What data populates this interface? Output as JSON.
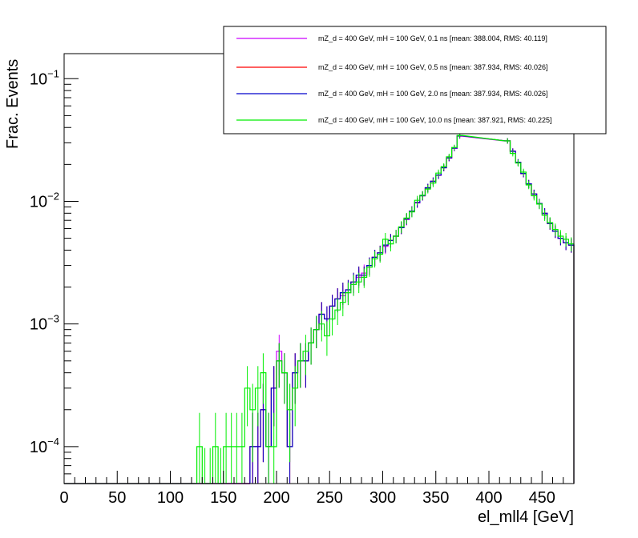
{
  "chart_data": {
    "type": "line",
    "xlabel": "el_mll4 [GeV]",
    "ylabel": "Frac. Events",
    "xlim": [
      0,
      480
    ],
    "ylim": [
      5e-05,
      0.16
    ],
    "yscale": "log",
    "x_ticks": [
      0,
      50,
      100,
      150,
      200,
      250,
      300,
      350,
      400,
      450
    ],
    "x_tick_labels": [
      "0",
      "50",
      "100",
      "150",
      "200",
      "250",
      "300",
      "350",
      "400",
      "450"
    ],
    "y_ticks": [
      0.0001,
      0.001,
      0.01,
      0.1
    ],
    "y_tick_labels": [
      {
        "base": "10",
        "exp": "−4"
      },
      {
        "base": "10",
        "exp": "−3"
      },
      {
        "base": "10",
        "exp": "−2"
      },
      {
        "base": "10",
        "exp": "−1"
      }
    ],
    "grid": false,
    "legend_position": "top-right",
    "bin_width": 5,
    "series": [
      {
        "name": "mZ_d = 400 GeV, mH = 100 GeV, 0.1 ns [mean: 388.004, RMS: 40.119]",
        "color": "#cc00ff",
        "x": [
          175,
          180,
          185,
          190,
          195,
          200,
          205,
          210,
          215,
          220,
          225,
          230,
          235,
          240,
          245,
          250,
          255,
          260,
          265,
          270,
          275,
          280,
          285,
          290,
          295,
          300,
          305,
          310,
          315,
          320,
          325,
          330,
          335,
          340,
          345,
          350,
          355,
          360,
          365,
          370,
          415,
          420,
          425,
          430,
          435,
          440,
          445,
          450,
          455,
          460,
          465,
          470,
          475
        ],
        "values": [
          0.0001,
          0.0001,
          0.0002,
          0.0001,
          0.0003,
          0.0006,
          0.0004,
          0.0002,
          0.0004,
          0.0005,
          0.0005,
          0.0007,
          0.0009,
          0.0012,
          0.0011,
          0.0014,
          0.0016,
          0.0017,
          0.0018,
          0.0021,
          0.0024,
          0.0026,
          0.003,
          0.0035,
          0.0038,
          0.0043,
          0.0048,
          0.0052,
          0.0061,
          0.0071,
          0.0083,
          0.0097,
          0.0111,
          0.0128,
          0.0145,
          0.0163,
          0.0188,
          0.0225,
          0.027,
          0.034,
          0.031,
          0.0255,
          0.0207,
          0.0168,
          0.0138,
          0.0114,
          0.0095,
          0.0079,
          0.0066,
          0.0057,
          0.005,
          0.0046,
          0.0044
        ]
      },
      {
        "name": "mZ_d = 400 GeV, mH = 100 GeV, 0.5 ns [mean: 387.934, RMS: 40.026]",
        "color": "#ff0000",
        "x": [
          175,
          180,
          185,
          190,
          195,
          200,
          205,
          210,
          215,
          220,
          225,
          230,
          235,
          240,
          245,
          250,
          255,
          260,
          265,
          270,
          275,
          280,
          285,
          290,
          295,
          300,
          305,
          310,
          315,
          320,
          325,
          330,
          335,
          340,
          345,
          350,
          355,
          360,
          365,
          370,
          415,
          420,
          425,
          430,
          435,
          440,
          445,
          450,
          455,
          460,
          465,
          470,
          475
        ],
        "values": [
          0.0001,
          0.0001,
          0.0002,
          0.0001,
          0.0003,
          0.0005,
          0.0004,
          0.0001,
          0.0004,
          0.0005,
          0.0005,
          0.0007,
          0.0009,
          0.0012,
          0.0011,
          0.0014,
          0.0016,
          0.0018,
          0.0019,
          0.0022,
          0.0025,
          0.0025,
          0.003,
          0.0035,
          0.0038,
          0.0044,
          0.0048,
          0.0052,
          0.0061,
          0.0072,
          0.0083,
          0.0098,
          0.0111,
          0.0129,
          0.0146,
          0.0164,
          0.0188,
          0.0226,
          0.0272,
          0.0342,
          0.0312,
          0.0256,
          0.0208,
          0.0169,
          0.0139,
          0.0115,
          0.0096,
          0.008,
          0.0066,
          0.0057,
          0.005,
          0.0046,
          0.0044
        ]
      },
      {
        "name": "mZ_d = 400 GeV, mH = 100 GeV, 2.0 ns [mean: 387.934, RMS: 40.026]",
        "color": "#0000cc",
        "x": [
          175,
          180,
          185,
          190,
          195,
          200,
          205,
          210,
          215,
          220,
          225,
          230,
          235,
          240,
          245,
          250,
          255,
          260,
          265,
          270,
          275,
          280,
          285,
          290,
          295,
          300,
          305,
          310,
          315,
          320,
          325,
          330,
          335,
          340,
          345,
          350,
          355,
          360,
          365,
          370,
          415,
          420,
          425,
          430,
          435,
          440,
          445,
          450,
          455,
          460,
          465,
          470,
          475
        ],
        "values": [
          0.0001,
          0.0001,
          0.0002,
          0.0001,
          0.0003,
          0.0005,
          0.0004,
          0.0001,
          0.0004,
          0.0005,
          0.0005,
          0.0007,
          0.0009,
          0.0012,
          0.0011,
          0.0014,
          0.0016,
          0.0018,
          0.0019,
          0.0022,
          0.0025,
          0.0025,
          0.003,
          0.0035,
          0.0038,
          0.0044,
          0.0048,
          0.0052,
          0.0061,
          0.0072,
          0.0083,
          0.0098,
          0.0111,
          0.0129,
          0.0146,
          0.0164,
          0.0188,
          0.0226,
          0.0272,
          0.0342,
          0.0312,
          0.0256,
          0.0208,
          0.0169,
          0.0139,
          0.0115,
          0.0096,
          0.008,
          0.0066,
          0.0057,
          0.005,
          0.0046,
          0.0044
        ]
      },
      {
        "name": "mZ_d = 400 GeV, mH = 100 GeV, 10.0 ns [mean: 387.921, RMS: 40.225]",
        "color": "#00ee00",
        "x": [
          125,
          130,
          135,
          140,
          145,
          150,
          155,
          160,
          165,
          170,
          175,
          180,
          185,
          190,
          195,
          200,
          205,
          210,
          215,
          220,
          225,
          230,
          235,
          240,
          245,
          250,
          255,
          260,
          265,
          270,
          275,
          280,
          285,
          290,
          295,
          300,
          305,
          310,
          315,
          320,
          325,
          330,
          335,
          340,
          345,
          350,
          355,
          360,
          365,
          370,
          415,
          420,
          425,
          430,
          435,
          440,
          445,
          450,
          455,
          460,
          465,
          470,
          475
        ],
        "values": [
          0.0001,
          5e-05,
          5e-05,
          0.0001,
          5e-05,
          0.0001,
          0.0001,
          0.0001,
          0.0001,
          0.0003,
          0.0002,
          0.0003,
          0.0004,
          0.0001,
          0.0001,
          0.0005,
          0.0004,
          0.0002,
          0.0003,
          0.0005,
          0.0006,
          0.0007,
          0.0009,
          0.001,
          0.0008,
          0.0011,
          0.0013,
          0.0015,
          0.0018,
          0.0021,
          0.0022,
          0.0024,
          0.0029,
          0.0034,
          0.0037,
          0.0049,
          0.0045,
          0.0052,
          0.0062,
          0.0073,
          0.0082,
          0.0102,
          0.0112,
          0.0126,
          0.0141,
          0.017,
          0.0192,
          0.0231,
          0.0275,
          0.0345,
          0.0311,
          0.0246,
          0.0205,
          0.0173,
          0.0136,
          0.0111,
          0.0095,
          0.0077,
          0.0067,
          0.0059,
          0.0052,
          0.0049,
          0.0045
        ]
      }
    ]
  }
}
